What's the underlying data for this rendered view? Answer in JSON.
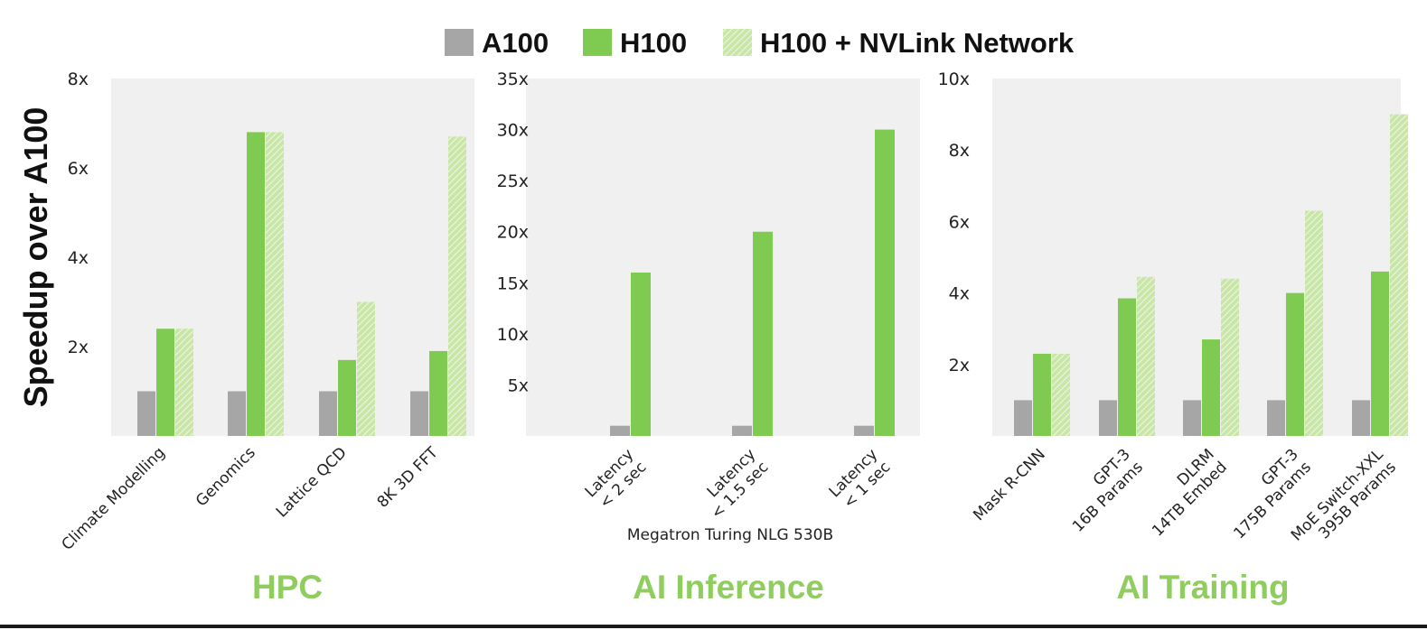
{
  "legend": [
    {
      "name": "A100",
      "style": "a100"
    },
    {
      "name": "H100",
      "style": "h100"
    },
    {
      "name": "H100 + NVLink Network",
      "style": "nvl"
    }
  ],
  "y_axis_label": "Speedup over A100",
  "colors": {
    "a100": "#a6a6a6",
    "h100": "#7fcb52",
    "nvlink_light": "#c9e6a8",
    "nvlink_stripe": "#eef7e4",
    "panel_bg": "#f0f0f0",
    "group_title": "#8fcd5f"
  },
  "chart_data": [
    {
      "type": "bar",
      "group_title": "HPC",
      "xlabel": "",
      "categories": [
        [
          "Climate Modelling"
        ],
        [
          "Genomics"
        ],
        [
          "Lattice QCD"
        ],
        [
          "8K 3D FFT"
        ]
      ],
      "y_ticks": [
        {
          "value": 2,
          "label": "2x"
        },
        {
          "value": 4,
          "label": "4x"
        },
        {
          "value": 6,
          "label": "6x"
        },
        {
          "value": 8,
          "label": "8x"
        }
      ],
      "ylim": [
        0,
        8
      ],
      "series": [
        {
          "name": "A100",
          "values": [
            1,
            1,
            1,
            1
          ]
        },
        {
          "name": "H100",
          "values": [
            2.4,
            6.8,
            1.7,
            1.9
          ]
        },
        {
          "name": "H100 + NVLink Network",
          "values": [
            2.4,
            6.8,
            3.0,
            6.7
          ]
        }
      ]
    },
    {
      "type": "bar",
      "group_title": "AI Inference",
      "xlabel": "Megatron Turing NLG 530B",
      "categories": [
        [
          "Latency",
          "< 2 sec"
        ],
        [
          "Latency",
          "< 1.5 sec"
        ],
        [
          "Latency",
          "< 1 sec"
        ]
      ],
      "y_ticks": [
        {
          "value": 5,
          "label": "5x"
        },
        {
          "value": 10,
          "label": "10x"
        },
        {
          "value": 15,
          "label": "15x"
        },
        {
          "value": 20,
          "label": "20x"
        },
        {
          "value": 25,
          "label": "25x"
        },
        {
          "value": 30,
          "label": "30x"
        },
        {
          "value": 35,
          "label": "35x"
        }
      ],
      "ylim": [
        0,
        35
      ],
      "series": [
        {
          "name": "A100",
          "values": [
            1,
            1,
            1
          ]
        },
        {
          "name": "H100",
          "values": [
            16,
            20,
            30
          ]
        }
      ]
    },
    {
      "type": "bar",
      "group_title": "AI Training",
      "xlabel": "",
      "categories": [
        [
          "Mask R-CNN"
        ],
        [
          "GPT-3",
          "16B Params"
        ],
        [
          "DLRM",
          "14TB Embed"
        ],
        [
          "GPT-3",
          "175B Params"
        ],
        [
          "MoE Switch-XXL",
          "395B Params"
        ]
      ],
      "y_ticks": [
        {
          "value": 2,
          "label": "2x"
        },
        {
          "value": 4,
          "label": "4x"
        },
        {
          "value": 6,
          "label": "6x"
        },
        {
          "value": 8,
          "label": "8x"
        },
        {
          "value": 10,
          "label": "10x"
        }
      ],
      "ylim": [
        0,
        10
      ],
      "series": [
        {
          "name": "A100",
          "values": [
            1,
            1,
            1,
            1,
            1
          ]
        },
        {
          "name": "H100",
          "values": [
            2.3,
            3.85,
            2.7,
            4.0,
            4.6
          ]
        },
        {
          "name": "H100 + NVLink Network",
          "values": [
            2.3,
            4.45,
            4.4,
            6.3,
            9.0
          ]
        }
      ]
    }
  ]
}
